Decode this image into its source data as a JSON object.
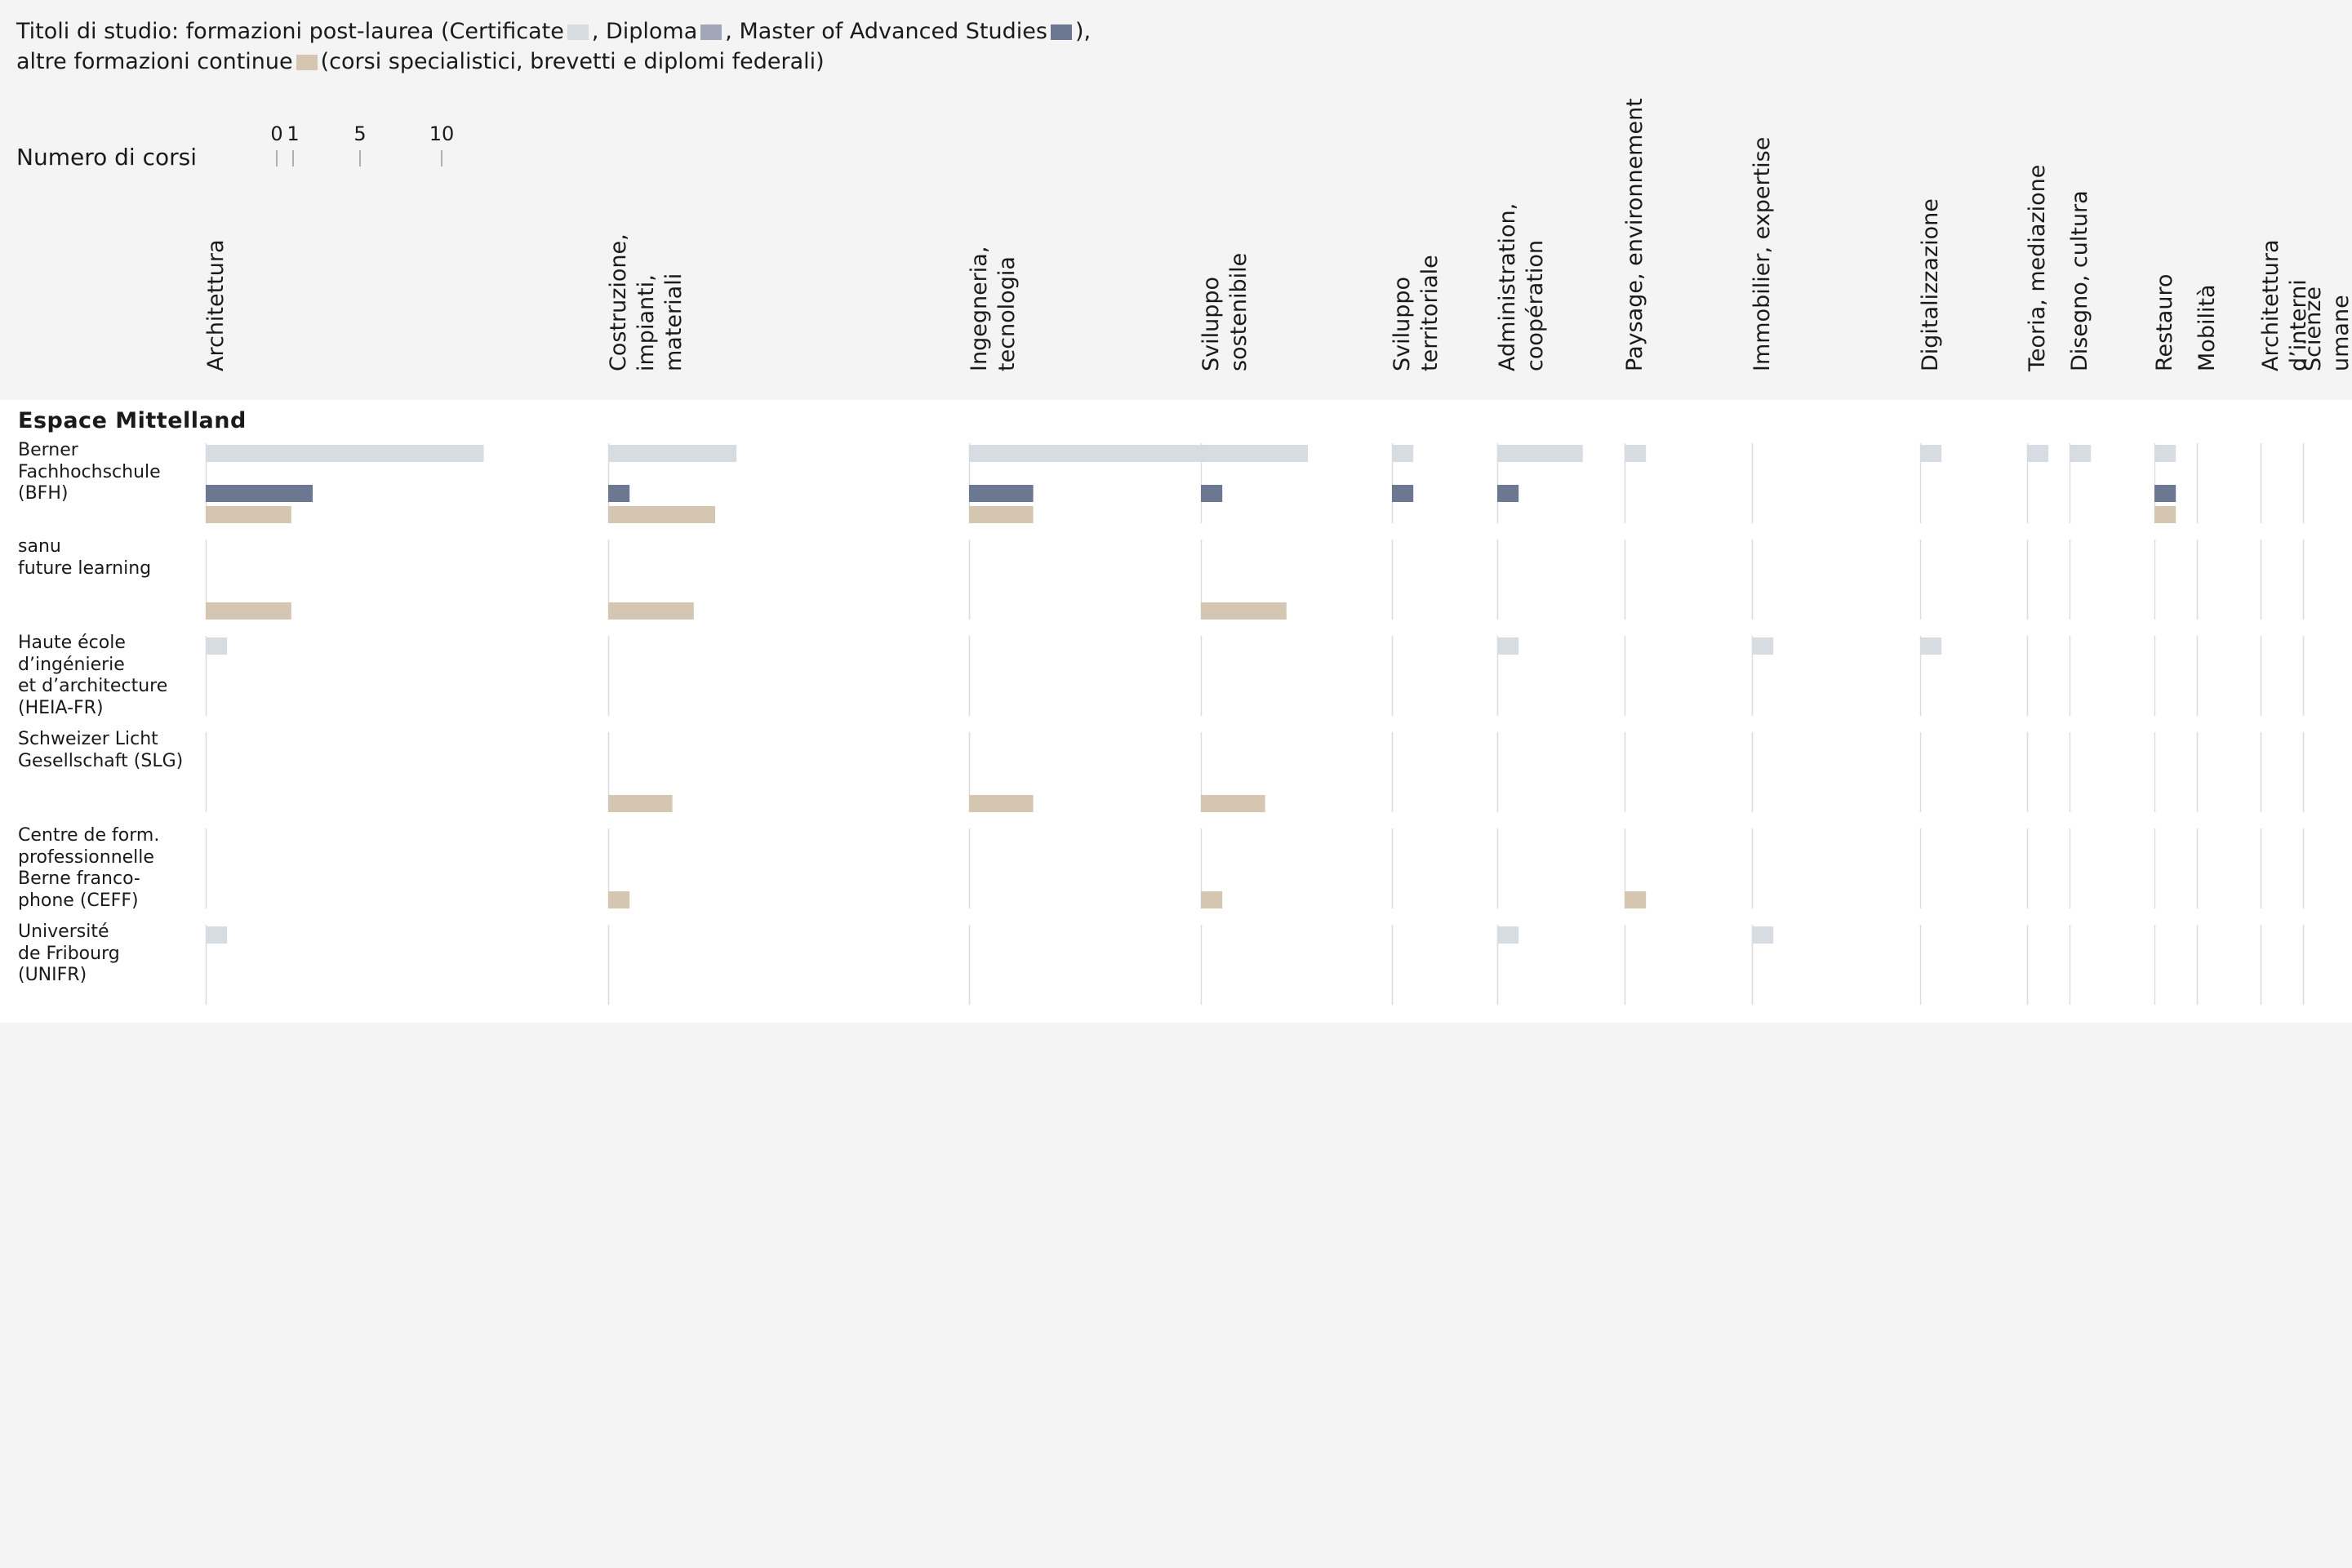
{
  "legend": {
    "line1_prefix": "Titoli di studio: formazioni post-laurea (Certificate",
    "certificate_sep": ", Diploma",
    "diploma_sep": ", Master of Advanced Studies",
    "mas_close": "),",
    "line2_prefix": "altre formazioni continue",
    "line2_suffix": "(corsi specialistici, brevetti e diplomi federali)"
  },
  "colors": {
    "certificate": "#d7dce3",
    "diploma": "#a1a6b8",
    "mas": "#6c7791",
    "other": "#d4c6b0",
    "gridline": "#dcdcdc"
  },
  "scale": {
    "label": "Numero di corsi",
    "ticks": [
      "0",
      "1",
      "5",
      "10"
    ]
  },
  "region": "Espace Mittelland",
  "chart_data": {
    "type": "bar",
    "unit": "Numero di corsi",
    "series_names": [
      "Certificate",
      "Diploma",
      "Master of Advanced Studies",
      "altre formazioni continue"
    ],
    "categories": [
      "Architettura",
      "Costruzione,\nimpianti,\nmateriali",
      "Ingegneria,\ntecnologia",
      "Sviluppo\nsostenibile",
      "Sviluppo\nterritoriale",
      "Administration,\ncoopération",
      "Paysage, environnement",
      "Immobilier, expertise",
      "Digitalizzazione",
      "Teoria, mediazione",
      "Disegno, cultura",
      "Restauro",
      "Mobilità",
      "Architettura d’interni",
      "Scienze umane"
    ],
    "institutions": [
      {
        "name": "Berner\nFachhochschule\n(BFH)",
        "certificate": [
          13,
          6,
          12,
          5,
          1,
          4,
          1,
          0,
          1,
          1,
          1,
          1,
          0,
          0,
          0
        ],
        "diploma": [
          0,
          0,
          0,
          0,
          0,
          0,
          0,
          0,
          0,
          0,
          0,
          0,
          0,
          0,
          0
        ],
        "mas": [
          5,
          1,
          3,
          1,
          1,
          1,
          0,
          0,
          0,
          0,
          0,
          1,
          0,
          0,
          0
        ],
        "other": [
          4,
          5,
          3,
          0,
          0,
          0,
          0,
          0,
          0,
          0,
          0,
          1,
          0,
          0,
          0
        ]
      },
      {
        "name": "sanu\nfuture learning",
        "certificate": [
          0,
          0,
          0,
          0,
          0,
          0,
          0,
          0,
          0,
          0,
          0,
          0,
          0,
          0,
          0
        ],
        "diploma": [
          0,
          0,
          0,
          0,
          0,
          0,
          0,
          0,
          0,
          0,
          0,
          0,
          0,
          0,
          0
        ],
        "mas": [
          0,
          0,
          0,
          0,
          0,
          0,
          0,
          0,
          0,
          0,
          0,
          0,
          0,
          0,
          0
        ],
        "other": [
          4,
          4,
          0,
          4,
          0,
          0,
          0,
          0,
          0,
          0,
          0,
          0,
          0,
          0,
          0
        ]
      },
      {
        "name": "Haute école\nd’ingénierie\net d’architecture\n(HEIA-FR)",
        "certificate": [
          1,
          0,
          0,
          0,
          0,
          1,
          0,
          1,
          1,
          0,
          0,
          0,
          0,
          0,
          0
        ],
        "diploma": [
          0,
          0,
          0,
          0,
          0,
          0,
          0,
          0,
          0,
          0,
          0,
          0,
          0,
          0,
          0
        ],
        "mas": [
          0,
          0,
          0,
          0,
          0,
          0,
          0,
          0,
          0,
          0,
          0,
          0,
          0,
          0,
          0
        ],
        "other": [
          0,
          0,
          0,
          0,
          0,
          0,
          0,
          0,
          0,
          0,
          0,
          0,
          0,
          0,
          0
        ]
      },
      {
        "name": "Schweizer Licht\nGesellschaft (SLG)",
        "certificate": [
          0,
          0,
          0,
          0,
          0,
          0,
          0,
          0,
          0,
          0,
          0,
          0,
          0,
          0,
          0
        ],
        "diploma": [
          0,
          0,
          0,
          0,
          0,
          0,
          0,
          0,
          0,
          0,
          0,
          0,
          0,
          0,
          0
        ],
        "mas": [
          0,
          0,
          0,
          0,
          0,
          0,
          0,
          0,
          0,
          0,
          0,
          0,
          0,
          0,
          0
        ],
        "other": [
          0,
          3,
          3,
          3,
          0,
          0,
          0,
          0,
          0,
          0,
          0,
          0,
          0,
          0,
          0
        ]
      },
      {
        "name": "Centre de form.\nprofessionnelle\nBerne franco-\nphone (CEFF)",
        "certificate": [
          0,
          0,
          0,
          0,
          0,
          0,
          0,
          0,
          0,
          0,
          0,
          0,
          0,
          0,
          0
        ],
        "diploma": [
          0,
          0,
          0,
          0,
          0,
          0,
          0,
          0,
          0,
          0,
          0,
          0,
          0,
          0,
          0
        ],
        "mas": [
          0,
          0,
          0,
          0,
          0,
          0,
          0,
          0,
          0,
          0,
          0,
          0,
          0,
          0,
          0
        ],
        "other": [
          0,
          1,
          0,
          1,
          0,
          0,
          1,
          0,
          0,
          0,
          0,
          0,
          0,
          0,
          0
        ]
      },
      {
        "name": "Université\nde Fribourg\n(UNIFR)",
        "certificate": [
          1,
          0,
          0,
          0,
          0,
          1,
          0,
          1,
          0,
          0,
          0,
          0,
          0,
          0,
          0
        ],
        "diploma": [
          0,
          0,
          0,
          0,
          0,
          0,
          0,
          0,
          0,
          0,
          0,
          0,
          0,
          0,
          0
        ],
        "mas": [
          0,
          0,
          0,
          0,
          0,
          0,
          0,
          0,
          0,
          0,
          0,
          0,
          0,
          0,
          0
        ],
        "other": [
          0,
          0,
          0,
          0,
          0,
          0,
          0,
          0,
          0,
          0,
          0,
          0,
          0,
          0,
          0
        ]
      }
    ]
  }
}
